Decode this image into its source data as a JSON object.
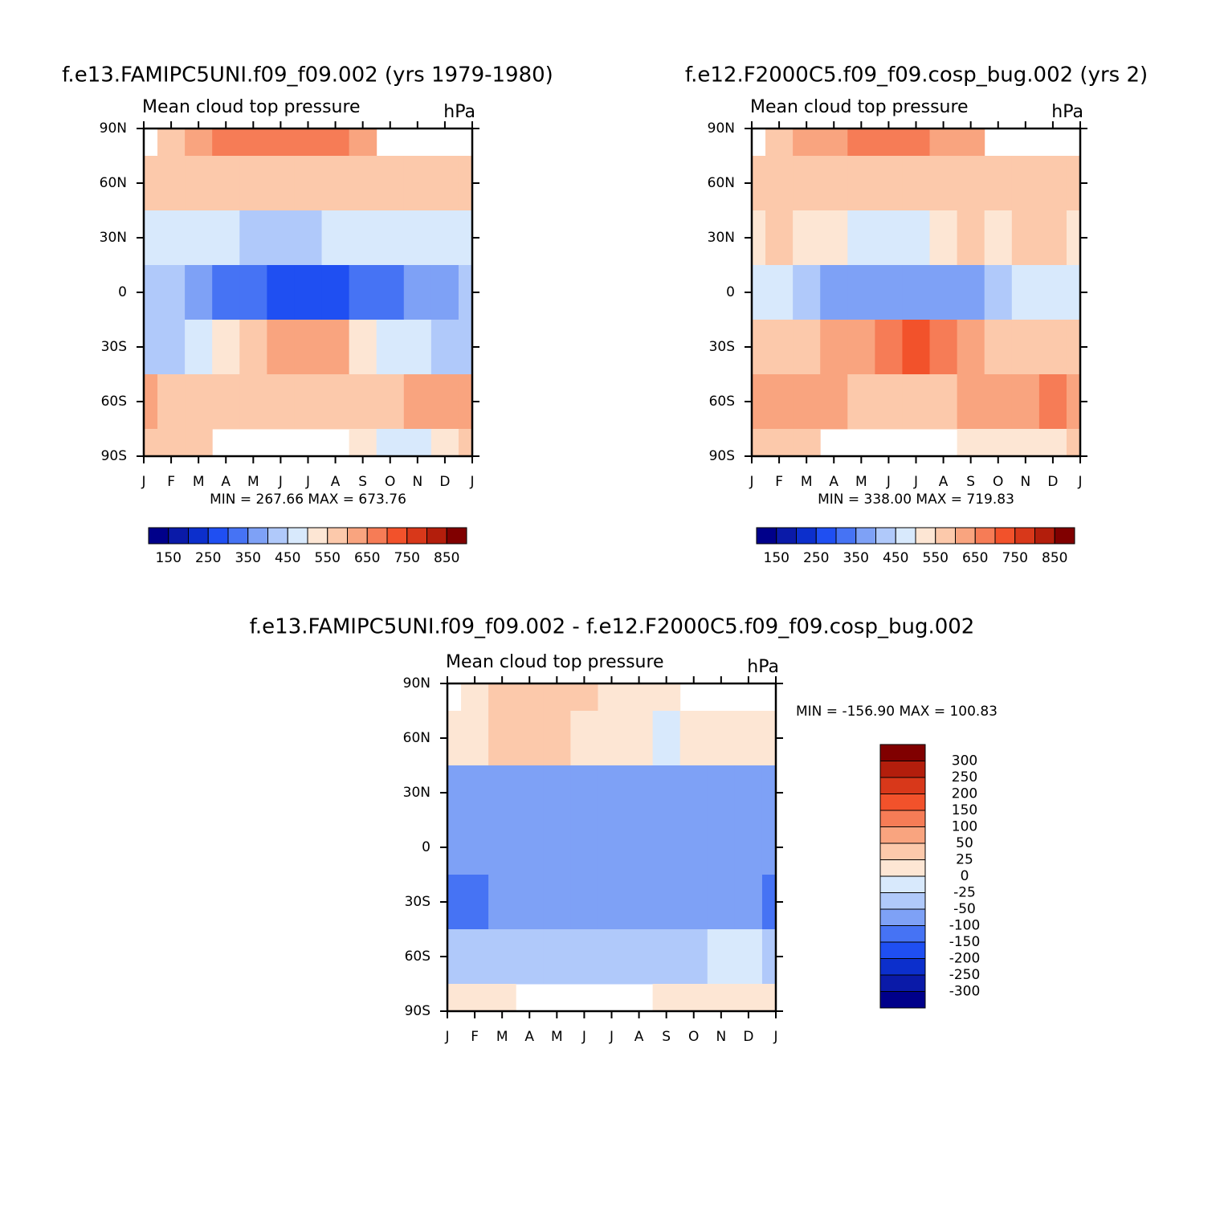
{
  "chart_data": [
    {
      "type": "contour",
      "title": "f.e13.FAMIPC5UNI.f09_f09.002 (yrs 1979-1980)",
      "subtitle_left": "Mean cloud top pressure",
      "subtitle_right": "hPa",
      "stats": "MIN = 267.66 MAX = 673.76",
      "categories": [
        "J",
        "F",
        "M",
        "A",
        "M",
        "J",
        "J",
        "A",
        "S",
        "O",
        "N",
        "D",
        "J"
      ],
      "ylim": [
        -90,
        90
      ],
      "yticks": [
        {
          "value": 90,
          "label": "90N"
        },
        {
          "value": 60,
          "label": "60N"
        },
        {
          "value": 30,
          "label": "30N"
        },
        0,
        {
          "value": -30,
          "label": "30S"
        },
        {
          "value": -60,
          "label": "60S"
        },
        {
          "value": -90,
          "label": "90S"
        }
      ],
      "values": [
        [
          null,
          560,
          640,
          650,
          660,
          690,
          680,
          650,
          620,
          null,
          null,
          null,
          null
        ],
        [
          560,
          560,
          570,
          580,
          570,
          560,
          560,
          560,
          560,
          560,
          580,
          580,
          570
        ],
        [
          470,
          480,
          460,
          450,
          430,
          420,
          430,
          450,
          470,
          470,
          470,
          480,
          470
        ],
        [
          400,
          400,
          380,
          320,
          300,
          290,
          280,
          280,
          300,
          320,
          350,
          360,
          400
        ],
        [
          430,
          440,
          470,
          540,
          580,
          620,
          640,
          600,
          540,
          480,
          450,
          430,
          430
        ],
        [
          600,
          580,
          590,
          580,
          570,
          560,
          570,
          580,
          580,
          590,
          600,
          640,
          600
        ],
        [
          560,
          560,
          550,
          null,
          null,
          null,
          null,
          null,
          520,
          480,
          480,
          500,
          560
        ]
      ],
      "levels": [
        150,
        200,
        250,
        300,
        350,
        400,
        450,
        500,
        550,
        600,
        650,
        700,
        750,
        800,
        850
      ],
      "colors": [
        "#00008a",
        "#0a1aa8",
        "#0c2fcc",
        "#1f4ff2",
        "#4673f4",
        "#7ea1f6",
        "#b0c9fa",
        "#d8e9fc",
        "#fde6d4",
        "#fcc9ab",
        "#f9a47f",
        "#f67c56",
        "#f2522b",
        "#d8381a",
        "#b31e0c",
        "#800000"
      ],
      "colorbar": "horizontal",
      "colorbar_label_step": 2
    },
    {
      "type": "contour",
      "title": "f.e12.F2000C5.f09_f09.cosp_bug.002 (yrs 2)",
      "subtitle_left": "Mean cloud top pressure",
      "subtitle_right": "hPa",
      "stats": "MIN = 338.00 MAX = 719.83",
      "categories": [
        "J",
        "F",
        "M",
        "A",
        "M",
        "J",
        "J",
        "A",
        "S",
        "O",
        "N",
        "D",
        "J"
      ],
      "ylim": [
        -90,
        90
      ],
      "yticks": [
        {
          "value": 90,
          "label": "90N"
        },
        {
          "value": 60,
          "label": "60N"
        },
        {
          "value": 30,
          "label": "30N"
        },
        0,
        {
          "value": -30,
          "label": "30S"
        },
        {
          "value": -60,
          "label": "60S"
        },
        {
          "value": -90,
          "label": "90S"
        }
      ],
      "values": [
        [
          null,
          560,
          620,
          640,
          650,
          660,
          660,
          640,
          620,
          null,
          null,
          null,
          null
        ],
        [
          570,
          570,
          570,
          560,
          560,
          560,
          560,
          570,
          570,
          560,
          570,
          580,
          570
        ],
        [
          520,
          560,
          520,
          500,
          490,
          480,
          490,
          520,
          550,
          520,
          550,
          560,
          520
        ],
        [
          450,
          450,
          420,
          380,
          380,
          370,
          380,
          380,
          390,
          420,
          450,
          470,
          450
        ],
        [
          560,
          570,
          580,
          620,
          640,
          690,
          700,
          680,
          620,
          580,
          580,
          580,
          560
        ],
        [
          640,
          640,
          620,
          600,
          580,
          570,
          580,
          590,
          600,
          620,
          640,
          650,
          640
        ],
        [
          560,
          560,
          560,
          null,
          null,
          null,
          null,
          null,
          520,
          500,
          500,
          520,
          560
        ]
      ],
      "levels": [
        150,
        200,
        250,
        300,
        350,
        400,
        450,
        500,
        550,
        600,
        650,
        700,
        750,
        800,
        850
      ],
      "colors": [
        "#00008a",
        "#0a1aa8",
        "#0c2fcc",
        "#1f4ff2",
        "#4673f4",
        "#7ea1f6",
        "#b0c9fa",
        "#d8e9fc",
        "#fde6d4",
        "#fcc9ab",
        "#f9a47f",
        "#f67c56",
        "#f2522b",
        "#d8381a",
        "#b31e0c",
        "#800000"
      ],
      "colorbar": "horizontal",
      "colorbar_label_step": 2
    },
    {
      "type": "contour",
      "title": "f.e13.FAMIPC5UNI.f09_f09.002 - f.e12.F2000C5.f09_f09.cosp_bug.002",
      "subtitle_left": "Mean cloud top pressure",
      "subtitle_right": "hPa",
      "stats": "MIN = -156.90 MAX = 100.83",
      "categories": [
        "J",
        "F",
        "M",
        "A",
        "M",
        "J",
        "J",
        "A",
        "S",
        "O",
        "N",
        "D",
        "J"
      ],
      "ylim": [
        -90,
        90
      ],
      "yticks": [
        {
          "value": 90,
          "label": "90N"
        },
        {
          "value": 60,
          "label": "60N"
        },
        {
          "value": 30,
          "label": "30N"
        },
        0,
        {
          "value": -30,
          "label": "30S"
        },
        {
          "value": -60,
          "label": "60S"
        },
        {
          "value": -90,
          "label": "90S"
        }
      ],
      "values": [
        [
          null,
          0,
          30,
          30,
          30,
          30,
          20,
          10,
          0,
          null,
          null,
          null,
          null
        ],
        [
          20,
          20,
          30,
          40,
          30,
          10,
          10,
          0,
          -10,
          10,
          20,
          10,
          20
        ],
        [
          -80,
          -90,
          -70,
          -70,
          -70,
          -80,
          -80,
          -90,
          -80,
          -60,
          -80,
          -70,
          -80
        ],
        [
          -70,
          -60,
          -90,
          -70,
          -80,
          -80,
          -90,
          -80,
          -80,
          -70,
          -60,
          -80,
          -70
        ],
        [
          -110,
          -110,
          -90,
          -80,
          -80,
          -70,
          -70,
          -60,
          -70,
          -90,
          -100,
          -90,
          -110
        ],
        [
          -40,
          -30,
          -40,
          -30,
          -30,
          -30,
          -50,
          -30,
          -30,
          -30,
          -20,
          -20,
          -40
        ],
        [
          10,
          10,
          10,
          null,
          null,
          null,
          null,
          null,
          10,
          10,
          10,
          20,
          10
        ]
      ],
      "levels": [
        -300,
        -250,
        -200,
        -150,
        -100,
        -50,
        -25,
        0,
        25,
        50,
        100,
        150,
        200,
        250,
        300
      ],
      "colors": [
        "#00008a",
        "#0a1aa8",
        "#0c2fcc",
        "#1f4ff2",
        "#4673f4",
        "#7ea1f6",
        "#b0c9fa",
        "#d8e9fc",
        "#fde6d4",
        "#fcc9ab",
        "#f9a47f",
        "#f67c56",
        "#f2522b",
        "#d8381a",
        "#b31e0c",
        "#800000"
      ],
      "colorbar": "vertical",
      "colorbar_label_step": 1
    }
  ]
}
